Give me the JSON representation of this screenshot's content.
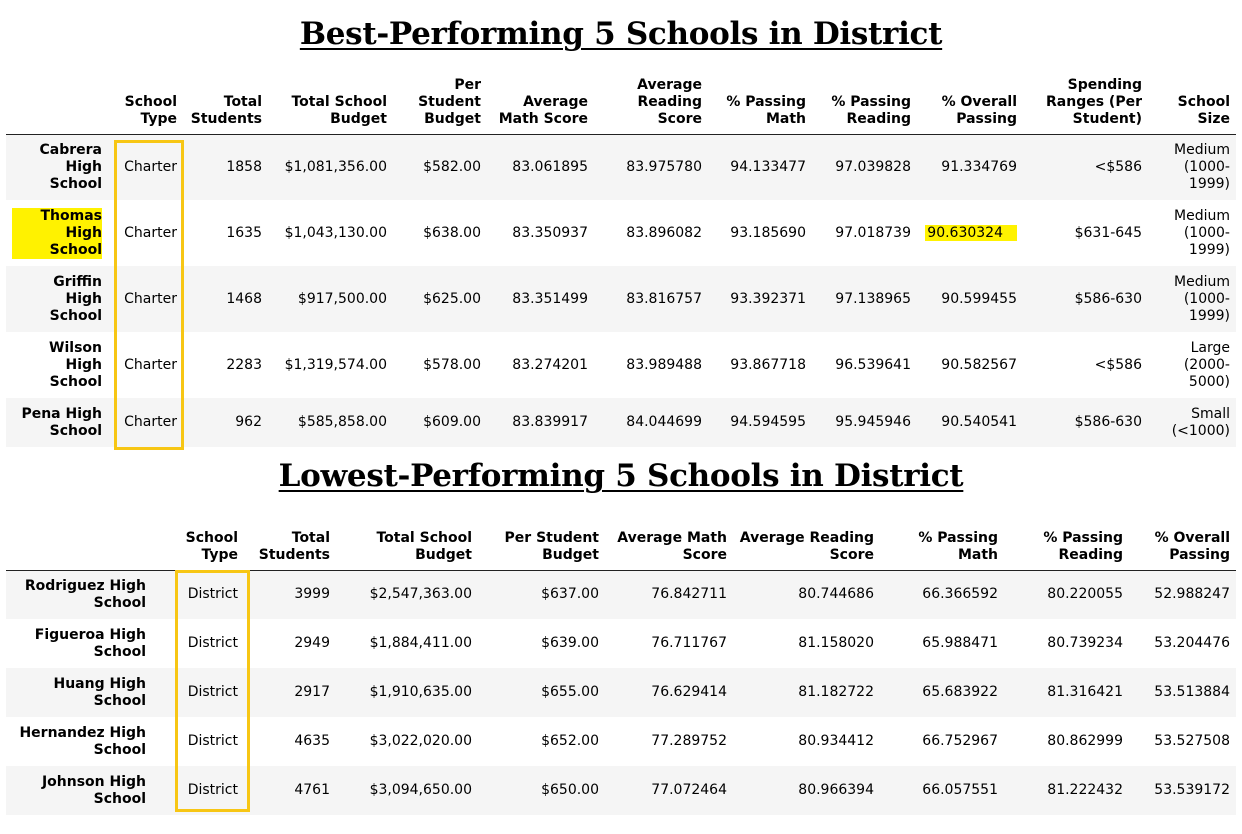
{
  "top": {
    "title": "Best-Performing 5 Schools in District",
    "columns": [
      "School Type",
      "Total Students",
      "Total School Budget",
      "Per Student Budget",
      "Average Math Score",
      "Average Reading Score",
      "% Passing Math",
      "% Passing Reading",
      "% Overall Passing",
      "Spending Ranges (Per Student)",
      "School Size"
    ],
    "rows": [
      {
        "name": "Cabrera High School",
        "type": "Charter",
        "students": "1858",
        "budget": "$1,081,356.00",
        "per_student": "$582.00",
        "math": "83.061895",
        "reading": "83.975780",
        "pass_math": "94.133477",
        "pass_reading": "97.039828",
        "overall": "91.334769",
        "spending": "<$586",
        "size": "Medium (1000-1999)"
      },
      {
        "name": "Thomas High School",
        "type": "Charter",
        "students": "1635",
        "budget": "$1,043,130.00",
        "per_student": "$638.00",
        "math": "83.350937",
        "reading": "83.896082",
        "pass_math": "93.185690",
        "pass_reading": "97.018739",
        "overall": "90.630324",
        "spending": "$631-645",
        "size": "Medium (1000-1999)"
      },
      {
        "name": "Griffin High School",
        "type": "Charter",
        "students": "1468",
        "budget": "$917,500.00",
        "per_student": "$625.00",
        "math": "83.351499",
        "reading": "83.816757",
        "pass_math": "93.392371",
        "pass_reading": "97.138965",
        "overall": "90.599455",
        "spending": "$586-630",
        "size": "Medium (1000-1999)"
      },
      {
        "name": "Wilson High School",
        "type": "Charter",
        "students": "2283",
        "budget": "$1,319,574.00",
        "per_student": "$578.00",
        "math": "83.274201",
        "reading": "83.989488",
        "pass_math": "93.867718",
        "pass_reading": "96.539641",
        "overall": "90.582567",
        "spending": "<$586",
        "size": "Large (2000-5000)"
      },
      {
        "name": "Pena High School",
        "type": "Charter",
        "students": "962",
        "budget": "$585,858.00",
        "per_student": "$609.00",
        "math": "83.839917",
        "reading": "84.044699",
        "pass_math": "94.594595",
        "pass_reading": "95.945946",
        "overall": "90.540541",
        "spending": "$586-630",
        "size": "Small (<1000)"
      }
    ]
  },
  "bottom": {
    "title": "Lowest-Performing 5 Schools in District",
    "columns": [
      "School Type",
      "Total Students",
      "Total School Budget",
      "Per Student Budget",
      "Average Math Score",
      "Average Reading Score",
      "% Passing Math",
      "% Passing Reading",
      "% Overall Passing"
    ],
    "rows": [
      {
        "name": "Rodriguez High School",
        "type": "District",
        "students": "3999",
        "budget": "$2,547,363.00",
        "per_student": "$637.00",
        "math": "76.842711",
        "reading": "80.744686",
        "pass_math": "66.366592",
        "pass_reading": "80.220055",
        "overall": "52.988247"
      },
      {
        "name": "Figueroa High School",
        "type": "District",
        "students": "2949",
        "budget": "$1,884,411.00",
        "per_student": "$639.00",
        "math": "76.711767",
        "reading": "81.158020",
        "pass_math": "65.988471",
        "pass_reading": "80.739234",
        "overall": "53.204476"
      },
      {
        "name": "Huang High School",
        "type": "District",
        "students": "2917",
        "budget": "$1,910,635.00",
        "per_student": "$655.00",
        "math": "76.629414",
        "reading": "81.182722",
        "pass_math": "65.683922",
        "pass_reading": "81.316421",
        "overall": "53.513884"
      },
      {
        "name": "Hernandez High School",
        "type": "District",
        "students": "4635",
        "budget": "$3,022,020.00",
        "per_student": "$652.00",
        "math": "77.289752",
        "reading": "80.934412",
        "pass_math": "66.752967",
        "pass_reading": "80.862999",
        "overall": "53.527508"
      },
      {
        "name": "Johnson High School",
        "type": "District",
        "students": "4761",
        "budget": "$3,094,650.00",
        "per_student": "$650.00",
        "math": "77.072464",
        "reading": "80.966394",
        "pass_math": "66.057551",
        "pass_reading": "81.222432",
        "overall": "53.539172"
      }
    ]
  },
  "highlight": {
    "box_color": "#f7c614",
    "marker_color": "#fff200",
    "highlighted_school": "Thomas High School",
    "highlighted_value": "90.630324"
  }
}
